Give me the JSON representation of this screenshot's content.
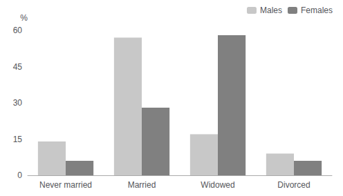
{
  "chart_data": {
    "type": "bar",
    "categories": [
      "Never married",
      "Married",
      "Widowed",
      "Divorced"
    ],
    "series": [
      {
        "name": "Males",
        "color": "#c8c8c8",
        "values": [
          14,
          57,
          17,
          9
        ]
      },
      {
        "name": "Females",
        "color": "#808080",
        "values": [
          6,
          28,
          58,
          6
        ]
      }
    ],
    "ylabel": "%",
    "ylim": [
      0,
      60
    ],
    "yticks": [
      0,
      15,
      30,
      45,
      60
    ],
    "grid": false,
    "legend": "upper right"
  }
}
